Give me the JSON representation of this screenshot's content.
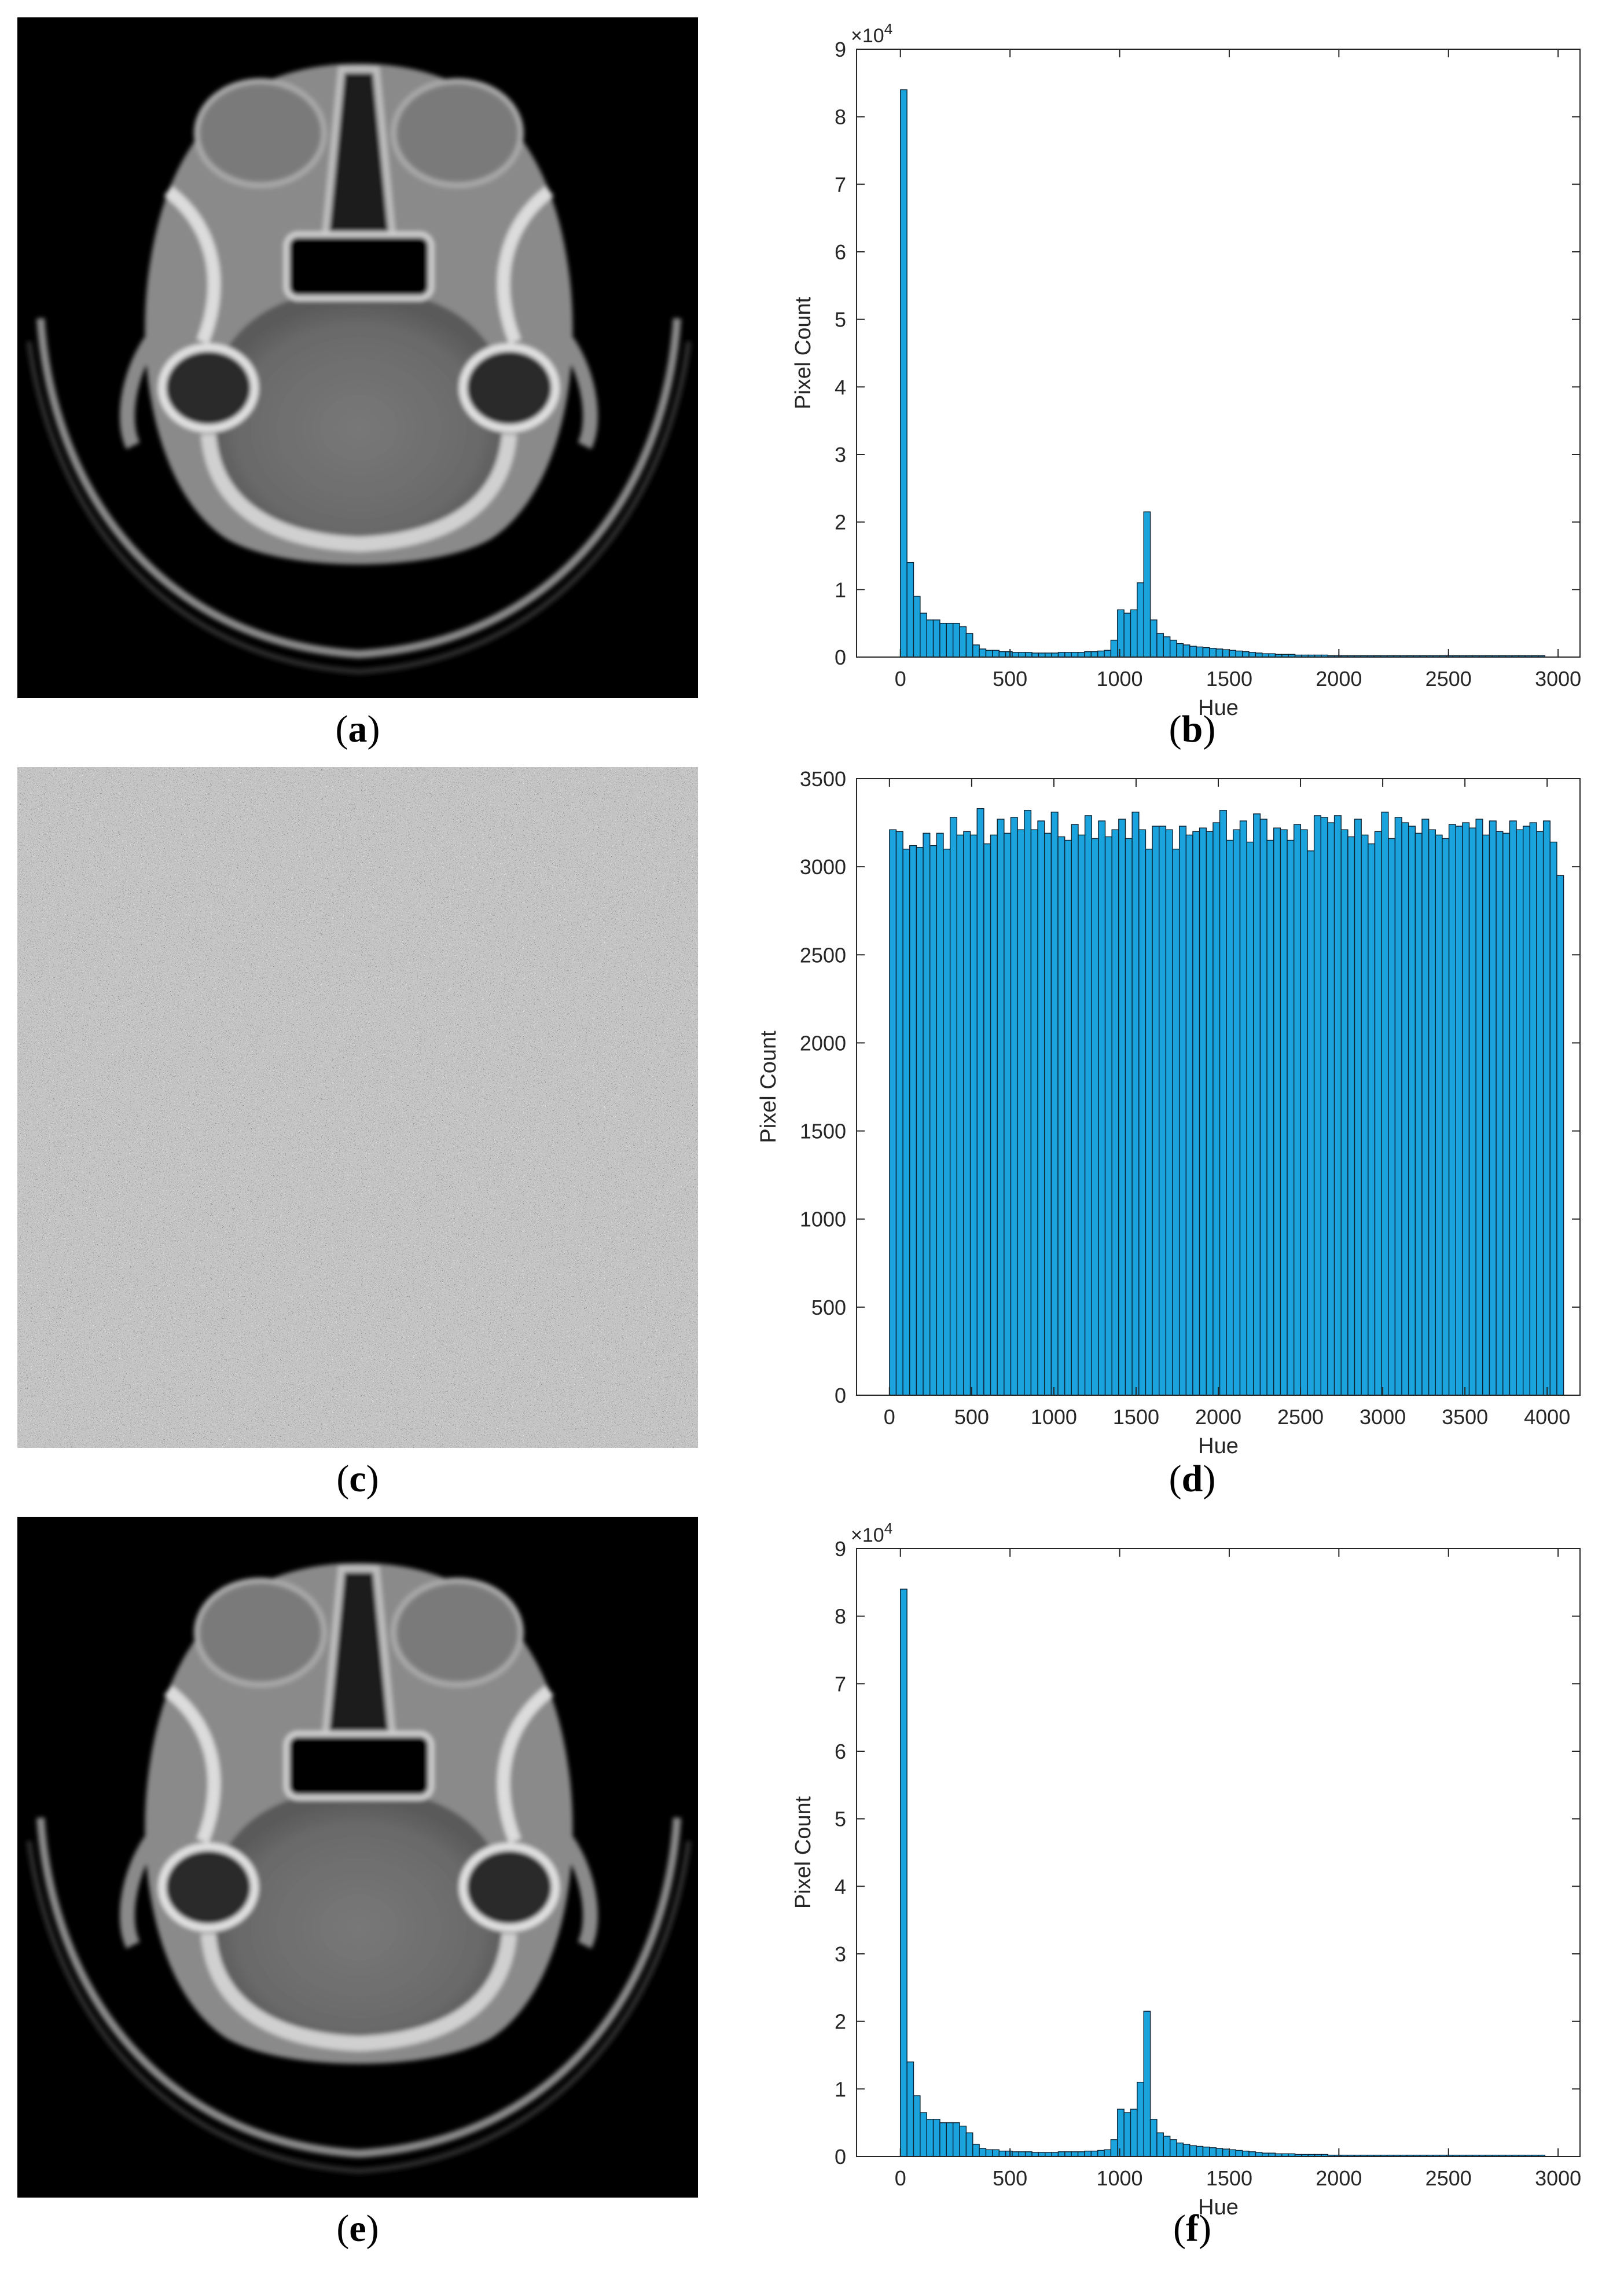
{
  "captions": {
    "a": "a",
    "b": "b",
    "c": "c",
    "d": "d",
    "e": "e",
    "f": "f"
  },
  "images": {
    "a": "ct-scan-original",
    "c": "ct-scan-encrypted-noise",
    "e": "ct-scan-decrypted"
  },
  "colors": {
    "bar": "#1aa3dc",
    "bar_edge": "#0b2233",
    "axis": "#262626"
  },
  "chart_data": [
    {
      "id": "b",
      "type": "bar",
      "xlabel": "Hue",
      "ylabel": "Pixel Count",
      "exponent_label": "×10",
      "exponent_power": "4",
      "xlim": [
        -200,
        3100
      ],
      "ylim": [
        0,
        9
      ],
      "xticks": [
        "0",
        "500",
        "1000",
        "1500",
        "2000",
        "2500",
        "3000"
      ],
      "xtick_values": [
        0,
        500,
        1000,
        1500,
        2000,
        2500,
        3000
      ],
      "yticks": [
        "0",
        "1",
        "2",
        "3",
        "4",
        "5",
        "6",
        "7",
        "8",
        "9"
      ],
      "ytick_values": [
        0,
        1,
        2,
        3,
        4,
        5,
        6,
        7,
        8,
        9
      ],
      "bin_width": 30,
      "bin_start": 0,
      "values": [
        8.4,
        1.4,
        0.9,
        0.65,
        0.55,
        0.55,
        0.5,
        0.5,
        0.5,
        0.45,
        0.35,
        0.18,
        0.12,
        0.1,
        0.1,
        0.08,
        0.08,
        0.07,
        0.07,
        0.07,
        0.06,
        0.06,
        0.06,
        0.06,
        0.07,
        0.07,
        0.07,
        0.07,
        0.08,
        0.08,
        0.09,
        0.1,
        0.25,
        0.7,
        0.65,
        0.7,
        1.1,
        2.15,
        0.55,
        0.35,
        0.3,
        0.25,
        0.2,
        0.18,
        0.16,
        0.15,
        0.14,
        0.13,
        0.12,
        0.11,
        0.1,
        0.09,
        0.08,
        0.07,
        0.06,
        0.05,
        0.05,
        0.04,
        0.04,
        0.04,
        0.03,
        0.03,
        0.03,
        0.03,
        0.03,
        0.02,
        0.02,
        0.02,
        0.02,
        0.02,
        0.02,
        0.02,
        0.02,
        0.02,
        0.02,
        0.02,
        0.02,
        0.02,
        0.02,
        0.02,
        0.02,
        0.02,
        0.02,
        0.02,
        0.02,
        0.02,
        0.02,
        0.02,
        0.02,
        0.02,
        0.02,
        0.02,
        0.02,
        0.02,
        0.02,
        0.02,
        0.02,
        0.02
      ]
    },
    {
      "id": "d",
      "type": "bar",
      "xlabel": "Hue",
      "ylabel": "Pixel Count",
      "xlim": [
        -200,
        4200
      ],
      "ylim": [
        0,
        3500
      ],
      "xticks": [
        "0",
        "500",
        "1000",
        "1500",
        "2000",
        "2500",
        "3000",
        "3500",
        "4000"
      ],
      "xtick_values": [
        0,
        500,
        1000,
        1500,
        2000,
        2500,
        3000,
        3500,
        4000
      ],
      "yticks": [
        "0",
        "500",
        "1000",
        "1500",
        "2000",
        "2500",
        "3000",
        "3500"
      ],
      "ytick_values": [
        0,
        500,
        1000,
        1500,
        2000,
        2500,
        3000,
        3500
      ],
      "bin_width": 41,
      "bin_start": 0,
      "values": [
        3210,
        3200,
        3100,
        3120,
        3110,
        3190,
        3120,
        3190,
        3100,
        3280,
        3180,
        3200,
        3180,
        3330,
        3130,
        3180,
        3270,
        3190,
        3280,
        3210,
        3320,
        3210,
        3260,
        3190,
        3310,
        3170,
        3150,
        3240,
        3180,
        3290,
        3160,
        3260,
        3170,
        3210,
        3270,
        3160,
        3310,
        3210,
        3100,
        3230,
        3230,
        3210,
        3100,
        3230,
        3180,
        3200,
        3220,
        3200,
        3250,
        3320,
        3150,
        3210,
        3260,
        3140,
        3300,
        3270,
        3150,
        3220,
        3210,
        3150,
        3240,
        3210,
        3090,
        3290,
        3280,
        3250,
        3290,
        3210,
        3170,
        3270,
        3180,
        3130,
        3200,
        3310,
        3160,
        3280,
        3250,
        3230,
        3190,
        3270,
        3210,
        3180,
        3160,
        3240,
        3230,
        3250,
        3220,
        3270,
        3180,
        3260,
        3200,
        3190,
        3260,
        3210,
        3230,
        3250,
        3200,
        3260,
        3140,
        2950
      ]
    },
    {
      "id": "f",
      "type": "bar",
      "xlabel": "Hue",
      "ylabel": "Pixel Count",
      "exponent_label": "×10",
      "exponent_power": "4",
      "xlim": [
        -200,
        3100
      ],
      "ylim": [
        0,
        9
      ],
      "xticks": [
        "0",
        "500",
        "1000",
        "1500",
        "2000",
        "2500",
        "3000"
      ],
      "xtick_values": [
        0,
        500,
        1000,
        1500,
        2000,
        2500,
        3000
      ],
      "yticks": [
        "0",
        "1",
        "2",
        "3",
        "4",
        "5",
        "6",
        "7",
        "8",
        "9"
      ],
      "ytick_values": [
        0,
        1,
        2,
        3,
        4,
        5,
        6,
        7,
        8,
        9
      ],
      "bin_width": 30,
      "bin_start": 0,
      "values": [
        8.4,
        1.4,
        0.9,
        0.65,
        0.55,
        0.55,
        0.5,
        0.5,
        0.5,
        0.45,
        0.35,
        0.18,
        0.12,
        0.1,
        0.1,
        0.08,
        0.08,
        0.07,
        0.07,
        0.07,
        0.06,
        0.06,
        0.06,
        0.06,
        0.07,
        0.07,
        0.07,
        0.07,
        0.08,
        0.08,
        0.09,
        0.1,
        0.25,
        0.7,
        0.65,
        0.7,
        1.1,
        2.15,
        0.55,
        0.35,
        0.3,
        0.25,
        0.2,
        0.18,
        0.16,
        0.15,
        0.14,
        0.13,
        0.12,
        0.11,
        0.1,
        0.09,
        0.08,
        0.07,
        0.06,
        0.05,
        0.05,
        0.04,
        0.04,
        0.04,
        0.03,
        0.03,
        0.03,
        0.03,
        0.03,
        0.02,
        0.02,
        0.02,
        0.02,
        0.02,
        0.02,
        0.02,
        0.02,
        0.02,
        0.02,
        0.02,
        0.02,
        0.02,
        0.02,
        0.02,
        0.02,
        0.02,
        0.02,
        0.02,
        0.02,
        0.02,
        0.02,
        0.02,
        0.02,
        0.02,
        0.02,
        0.02,
        0.02,
        0.02,
        0.02,
        0.02,
        0.02,
        0.02
      ]
    }
  ]
}
